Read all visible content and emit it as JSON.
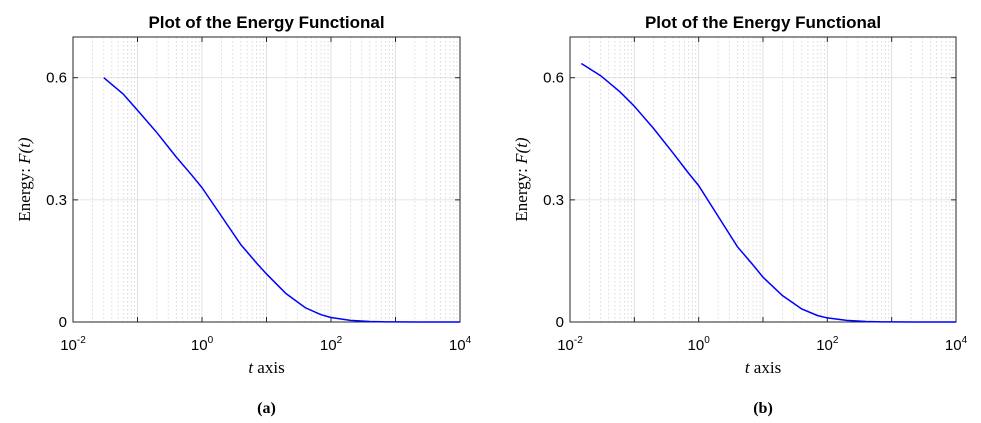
{
  "chart_data": [
    {
      "panel": "(a)",
      "type": "line",
      "title": "Plot of the Energy Functional",
      "xlabel_italic": "t",
      "xlabel_text": " axis",
      "ylabel_text": "Energy: ",
      "ylabel_math": "F(t)",
      "xscale": "log",
      "xlim": [
        0.01,
        10000
      ],
      "ylim": [
        0,
        0.7
      ],
      "xticks": [
        {
          "base": "10",
          "exp": "-2"
        },
        {
          "base": "10",
          "exp": "0"
        },
        {
          "base": "10",
          "exp": "2"
        },
        {
          "base": "10",
          "exp": "4"
        }
      ],
      "xtick_values": [
        0.01,
        1,
        100,
        10000
      ],
      "yticks": [
        "0",
        "0.3",
        "0.6"
      ],
      "ytick_values": [
        0,
        0.3,
        0.6
      ],
      "grid": true,
      "color": "#0000ff",
      "series": [
        {
          "x": [
            0.03,
            0.06,
            0.1,
            0.2,
            0.4,
            0.7,
            1,
            2,
            4,
            7,
            10,
            20,
            40,
            70,
            100,
            200,
            400,
            700,
            1000,
            2000,
            5000,
            10000
          ],
          "y": [
            0.6,
            0.56,
            0.52,
            0.465,
            0.405,
            0.36,
            0.33,
            0.26,
            0.19,
            0.145,
            0.118,
            0.07,
            0.035,
            0.018,
            0.011,
            0.004,
            0.0012,
            0.0004,
            0.0002,
            0.0001,
            5e-05,
            2e-05
          ]
        }
      ],
      "caption": "(a)"
    },
    {
      "panel": "(b)",
      "type": "line",
      "title": "Plot of the Energy Functional",
      "xlabel_italic": "t",
      "xlabel_text": " axis",
      "ylabel_text": "Energy: ",
      "ylabel_math": "F(t)",
      "xscale": "log",
      "xlim": [
        0.01,
        10000
      ],
      "ylim": [
        0,
        0.7
      ],
      "xticks": [
        {
          "base": "10",
          "exp": "-2"
        },
        {
          "base": "10",
          "exp": "0"
        },
        {
          "base": "10",
          "exp": "2"
        },
        {
          "base": "10",
          "exp": "4"
        }
      ],
      "xtick_values": [
        0.01,
        1,
        100,
        10000
      ],
      "yticks": [
        "0",
        "0.3",
        "0.6"
      ],
      "ytick_values": [
        0,
        0.3,
        0.6
      ],
      "grid": true,
      "color": "#0000ff",
      "series": [
        {
          "x": [
            0.015,
            0.03,
            0.06,
            0.1,
            0.2,
            0.4,
            0.7,
            1,
            2,
            4,
            7,
            10,
            20,
            40,
            70,
            100,
            200,
            400,
            700,
            1000,
            2000,
            5000,
            10000
          ],
          "y": [
            0.635,
            0.605,
            0.565,
            0.53,
            0.475,
            0.415,
            0.365,
            0.335,
            0.26,
            0.185,
            0.14,
            0.11,
            0.065,
            0.032,
            0.016,
            0.01,
            0.004,
            0.0012,
            0.0004,
            0.0002,
            0.0001,
            5e-05,
            2e-05
          ]
        }
      ],
      "caption": "(b)"
    }
  ]
}
